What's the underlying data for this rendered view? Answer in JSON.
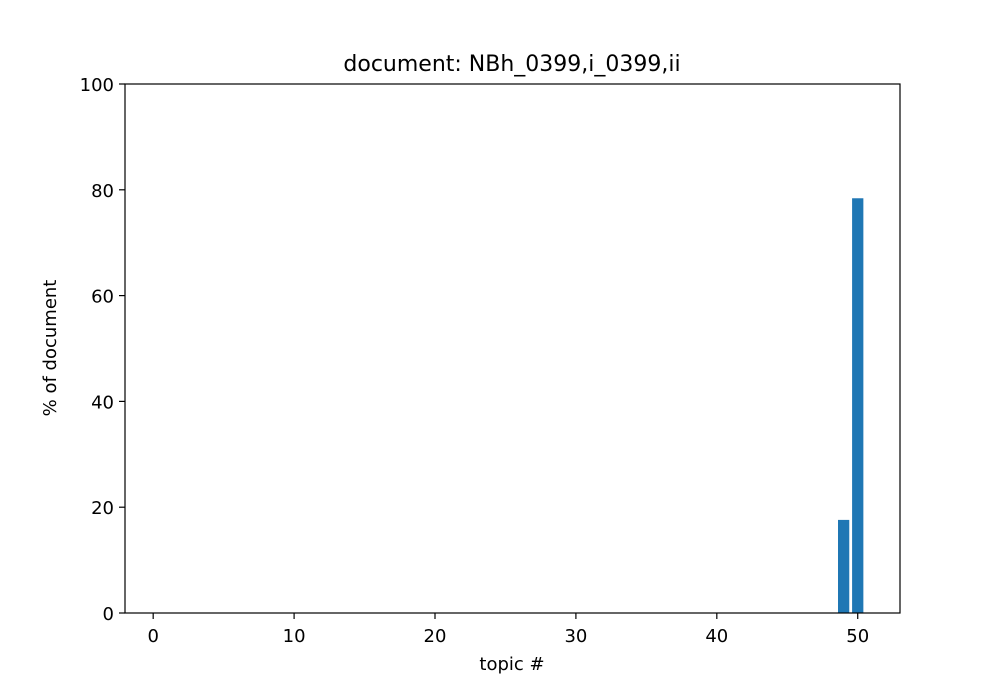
{
  "chart_data": {
    "type": "bar",
    "title": "document: NBh_0399,i_0399,ii",
    "xlabel": "topic #",
    "ylabel": "% of document",
    "xlim": [
      -2,
      53
    ],
    "ylim": [
      0,
      100
    ],
    "x_ticks": [
      0,
      10,
      20,
      30,
      40,
      50
    ],
    "y_ticks": [
      0,
      20,
      40,
      60,
      80,
      100
    ],
    "bar_width": 0.8,
    "color": "#1f77b4",
    "series": [
      {
        "x": [
          49,
          50
        ],
        "values": [
          17.6,
          78.4
        ]
      }
    ],
    "grid": false,
    "legend": "none"
  }
}
